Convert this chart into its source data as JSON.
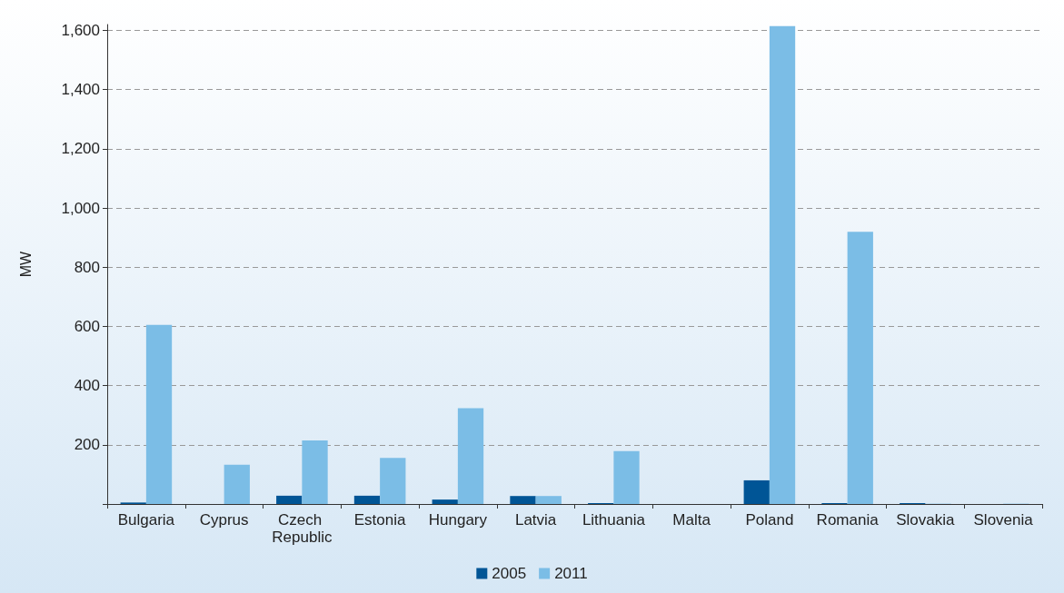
{
  "chart_data": {
    "type": "bar",
    "ylabel": "MW",
    "categories": [
      "Bulgaria",
      "Cyprus",
      "Czech Republic",
      "Estonia",
      "Hungary",
      "Latvia",
      "Lithuania",
      "Malta",
      "Poland",
      "Romania",
      "Slovakia",
      "Slovenia"
    ],
    "series": [
      {
        "name": "2005",
        "color": "#005596",
        "values": [
          5,
          0,
          28,
          28,
          15,
          27,
          3,
          0,
          80,
          3,
          3,
          0
        ]
      },
      {
        "name": "2011",
        "color": "#7bbde6",
        "values": [
          605,
          133,
          215,
          156,
          324,
          27,
          179,
          0,
          1615,
          920,
          1,
          1
        ]
      }
    ],
    "ylim": [
      0,
      1620
    ],
    "yticks": [
      {
        "value": 0,
        "label": null
      },
      200,
      400,
      600,
      800,
      {
        "value": 1000,
        "label": "1,000"
      },
      {
        "value": 1200,
        "label": "1,200"
      },
      {
        "value": 1400,
        "label": "1,400"
      },
      {
        "value": 1600,
        "label": "1,600"
      }
    ],
    "grid": "y",
    "legend": "bottom"
  }
}
